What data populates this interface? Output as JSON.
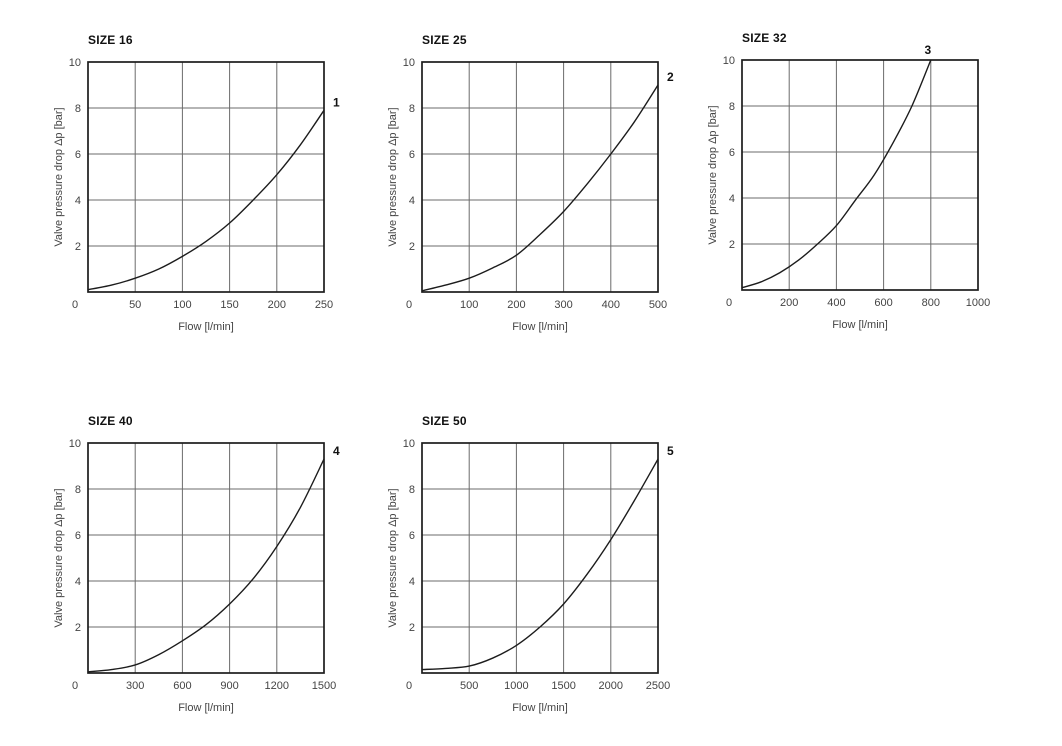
{
  "page": {
    "background": "#ffffff"
  },
  "colors": {
    "curve": "#1c1c1c",
    "frame": "#1c1c1c",
    "grid": "#6b6b6b",
    "tick_text": "#444444",
    "title_text": "#111111"
  },
  "chart_data": [
    {
      "type": "line",
      "title": "SIZE 16",
      "xlabel": "Flow [l/min]",
      "ylabel": "Valve pressure drop Δp [bar]",
      "xlim": [
        0,
        250
      ],
      "ylim": [
        0,
        10
      ],
      "xticks": [
        0,
        50,
        100,
        150,
        200,
        250
      ],
      "xtick_labels": [
        "0",
        "50",
        "100",
        "150",
        "200",
        "250"
      ],
      "yticks": [
        2,
        4,
        6,
        8,
        10
      ],
      "ytick_labels": [
        "2",
        "4",
        "6",
        "8",
        "10"
      ],
      "grid": true,
      "legend": "none",
      "series": [
        {
          "name": "1",
          "x": [
            0,
            25,
            50,
            75,
            100,
            125,
            150,
            175,
            200,
            225,
            250
          ],
          "y": [
            0.1,
            0.3,
            0.6,
            1.0,
            1.55,
            2.2,
            3.0,
            4.0,
            5.1,
            6.4,
            7.9
          ]
        }
      ]
    },
    {
      "type": "line",
      "title": "SIZE 25",
      "xlabel": "Flow [l/min]",
      "ylabel": "Valve pressure drop Δp [bar]",
      "xlim": [
        0,
        500
      ],
      "ylim": [
        0,
        10
      ],
      "xticks": [
        0,
        100,
        200,
        300,
        400,
        500
      ],
      "xtick_labels": [
        "0",
        "100",
        "200",
        "300",
        "400",
        "500"
      ],
      "yticks": [
        2,
        4,
        6,
        8,
        10
      ],
      "ytick_labels": [
        "2",
        "4",
        "6",
        "8",
        "10"
      ],
      "grid": true,
      "legend": "none",
      "series": [
        {
          "name": "2",
          "x": [
            0,
            50,
            100,
            150,
            200,
            250,
            300,
            350,
            400,
            450,
            500
          ],
          "y": [
            0.05,
            0.3,
            0.6,
            1.05,
            1.6,
            2.5,
            3.5,
            4.7,
            6.0,
            7.4,
            9.0
          ]
        }
      ]
    },
    {
      "type": "line",
      "title": "SIZE 32",
      "xlabel": "Flow [l/min]",
      "ylabel": "Valve pressure drop Δp [bar]",
      "xlim": [
        0,
        1000
      ],
      "ylim": [
        0,
        10
      ],
      "xticks": [
        0,
        200,
        400,
        600,
        800,
        1000
      ],
      "xtick_labels": [
        "0",
        "200",
        "400",
        "600",
        "800",
        "1000"
      ],
      "yticks": [
        2,
        4,
        6,
        8,
        10
      ],
      "ytick_labels": [
        "2",
        "4",
        "6",
        "8",
        "10"
      ],
      "grid": true,
      "legend": "none",
      "series": [
        {
          "name": "3",
          "x": [
            0,
            80,
            160,
            240,
            320,
            400,
            480,
            560,
            640,
            720,
            800
          ],
          "y": [
            0.1,
            0.35,
            0.75,
            1.3,
            2.0,
            2.8,
            3.9,
            5.0,
            6.4,
            8.0,
            10.0
          ]
        }
      ]
    },
    {
      "type": "line",
      "title": "SIZE 40",
      "xlabel": "Flow [l/min]",
      "ylabel": "Valve pressure drop Δp [bar]",
      "xlim": [
        0,
        1500
      ],
      "ylim": [
        0,
        10
      ],
      "xticks": [
        0,
        300,
        600,
        900,
        1200,
        1500
      ],
      "xtick_labels": [
        "0",
        "300",
        "600",
        "900",
        "1200",
        "1500"
      ],
      "yticks": [
        2,
        4,
        6,
        8,
        10
      ],
      "ytick_labels": [
        "2",
        "4",
        "6",
        "8",
        "10"
      ],
      "grid": true,
      "legend": "none",
      "series": [
        {
          "name": "4",
          "x": [
            0,
            150,
            300,
            450,
            600,
            750,
            900,
            1050,
            1200,
            1350,
            1500
          ],
          "y": [
            0.05,
            0.15,
            0.35,
            0.8,
            1.4,
            2.1,
            3.0,
            4.1,
            5.5,
            7.2,
            9.3
          ]
        }
      ]
    },
    {
      "type": "line",
      "title": "SIZE 50",
      "xlabel": "Flow [l/min]",
      "ylabel": "Valve pressure drop Δp [bar]",
      "xlim": [
        0,
        2500
      ],
      "ylim": [
        0,
        10
      ],
      "xticks": [
        0,
        500,
        1000,
        1500,
        2000,
        2500
      ],
      "xtick_labels": [
        "0",
        "500",
        "1000",
        "1500",
        "2000",
        "2500"
      ],
      "yticks": [
        2,
        4,
        6,
        8,
        10
      ],
      "ytick_labels": [
        "2",
        "4",
        "6",
        "8",
        "10"
      ],
      "grid": true,
      "legend": "none",
      "series": [
        {
          "name": "5",
          "x": [
            0,
            250,
            500,
            750,
            1000,
            1250,
            1500,
            1750,
            2000,
            2250,
            2500
          ],
          "y": [
            0.15,
            0.2,
            0.3,
            0.65,
            1.2,
            2.0,
            3.0,
            4.3,
            5.8,
            7.5,
            9.3
          ]
        }
      ]
    }
  ]
}
